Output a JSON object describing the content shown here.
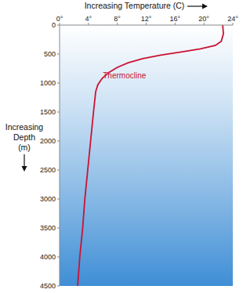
{
  "chart_data": {
    "type": "line",
    "xlabel": "Increasing Temperature (C)",
    "ylabel": "Increasing Depth (m)",
    "x": [
      22.6,
      22.7,
      22.4,
      21.6,
      19.5,
      17,
      14,
      11.5,
      9.5,
      8,
      6.8,
      5.9,
      5.3,
      5,
      4.7,
      4.3,
      3.9,
      3.5,
      3.2,
      2.8,
      2.5
    ],
    "values": [
      0,
      150,
      280,
      350,
      410,
      460,
      520,
      580,
      650,
      730,
      820,
      920,
      1030,
      1150,
      1500,
      2000,
      2500,
      3000,
      3500,
      4000,
      4500
    ],
    "color": "#cc1133",
    "xlim": [
      0,
      24
    ],
    "xticks": [
      {
        "value": 0,
        "label": "0°"
      },
      {
        "value": 4,
        "label": "4°"
      },
      {
        "value": 8,
        "label": "8°"
      },
      {
        "value": 12,
        "label": "12°"
      },
      {
        "value": 16,
        "label": "16°"
      },
      {
        "value": 20,
        "label": "20°"
      },
      {
        "value": 24,
        "label": "24°"
      }
    ],
    "ylim": [
      0,
      4500
    ],
    "yticks": [
      0,
      500,
      1000,
      1500,
      2000,
      2500,
      3000,
      3500,
      4000,
      4500
    ],
    "annotations": [
      {
        "text": "Thermocline",
        "x": 6,
        "y": 870
      }
    ]
  }
}
